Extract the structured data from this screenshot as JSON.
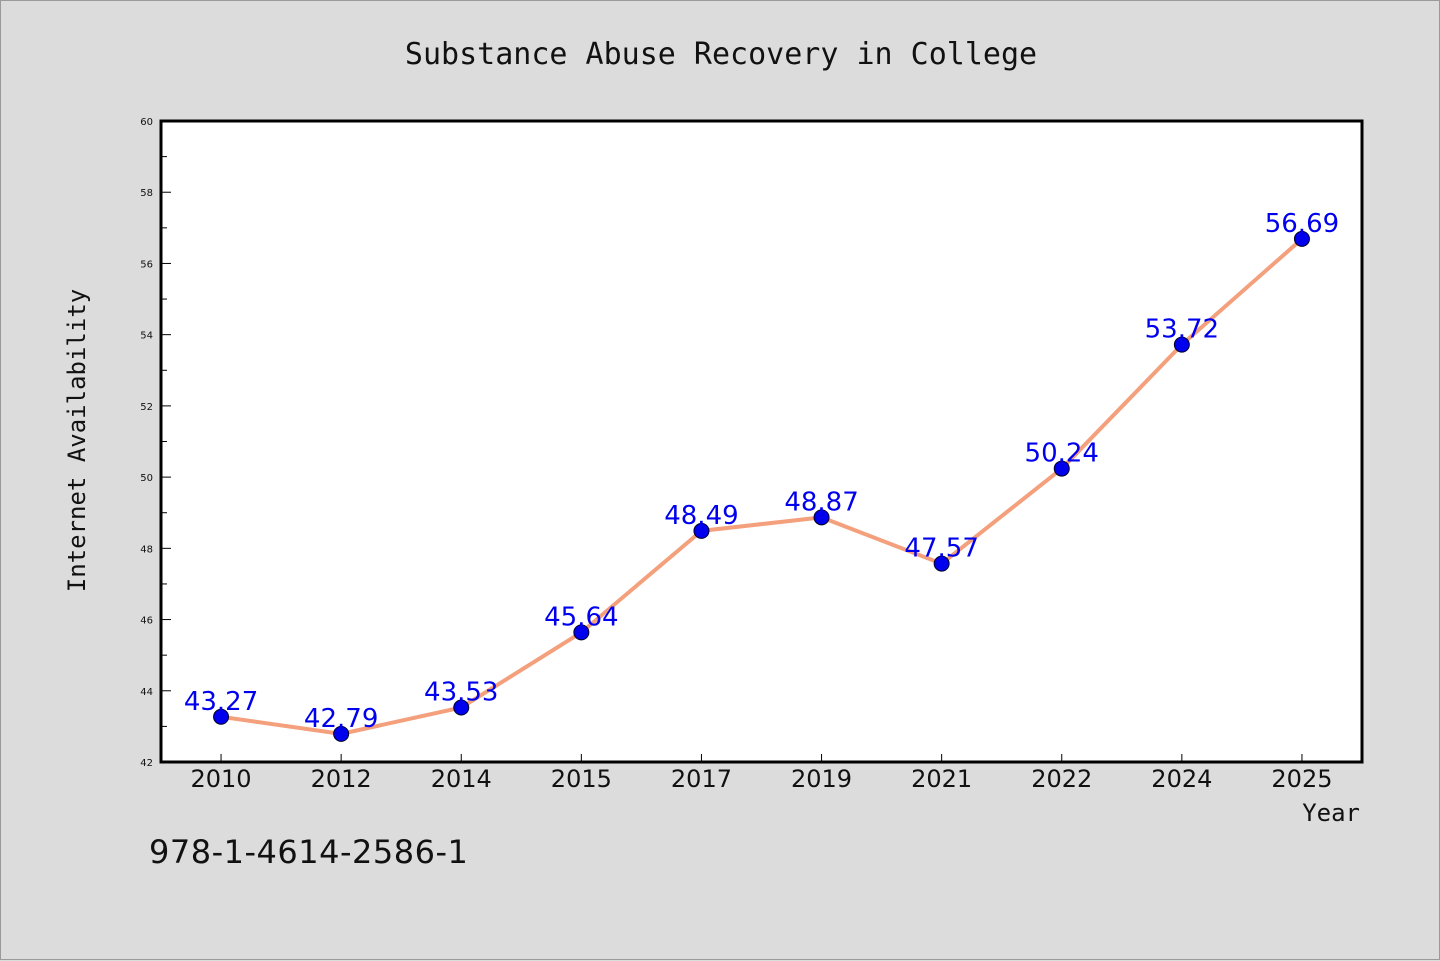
{
  "chart_data": {
    "type": "line",
    "title": "Substance Abuse Recovery in College",
    "xlabel": "Year",
    "ylabel": "Internet Availability",
    "categories": [
      "2010",
      "2012",
      "2014",
      "2015",
      "2017",
      "2019",
      "2021",
      "2022",
      "2024",
      "2025"
    ],
    "values": [
      43.27,
      42.79,
      43.53,
      45.64,
      48.49,
      48.87,
      47.57,
      50.24,
      53.72,
      56.69
    ],
    "data_labels": [
      "43.27",
      "42.79",
      "43.53",
      "45.64",
      "48.49",
      "48.87",
      "47.57",
      "50.24",
      "53.72",
      "56.69"
    ],
    "ylim": [
      42,
      60
    ],
    "yticks": [
      42,
      44,
      46,
      48,
      50,
      52,
      54,
      56,
      58,
      60
    ],
    "grid": false,
    "line_color": "#f4a07c",
    "marker_color": "#0000ee",
    "label_color": "#0000ee"
  },
  "annotation": "978-1-4614-2586-1"
}
